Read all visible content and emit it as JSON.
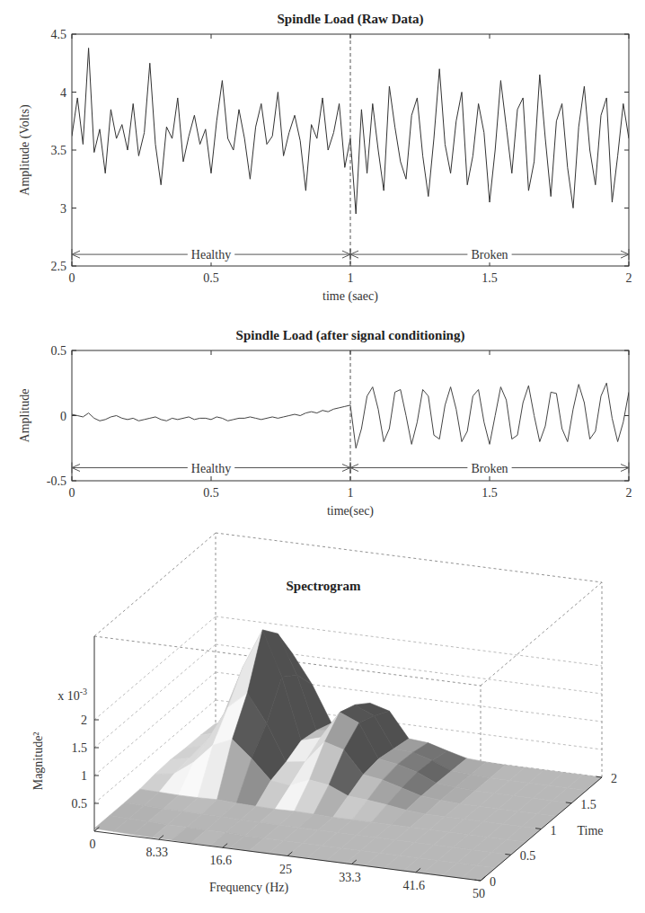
{
  "chart_data": [
    {
      "type": "line",
      "title": "Spindle Load (Raw Data)",
      "xlabel": "time (saec)",
      "ylabel": "Amplitude (Volts)",
      "xlim": [
        0,
        2
      ],
      "ylim": [
        2.5,
        4.5
      ],
      "xticks": [
        0,
        0.5,
        1,
        1.5,
        2
      ],
      "yticks": [
        2.5,
        3,
        3.5,
        4,
        4.5
      ],
      "grid": false,
      "x": [
        0,
        0.02,
        0.04,
        0.06,
        0.08,
        0.1,
        0.12,
        0.14,
        0.16,
        0.18,
        0.2,
        0.22,
        0.24,
        0.26,
        0.28,
        0.3,
        0.32,
        0.34,
        0.36,
        0.38,
        0.4,
        0.42,
        0.44,
        0.46,
        0.48,
        0.5,
        0.52,
        0.54,
        0.56,
        0.58,
        0.6,
        0.62,
        0.64,
        0.66,
        0.68,
        0.7,
        0.72,
        0.74,
        0.76,
        0.78,
        0.8,
        0.82,
        0.84,
        0.86,
        0.88,
        0.9,
        0.92,
        0.94,
        0.96,
        0.98,
        1.0,
        1.02,
        1.04,
        1.06,
        1.08,
        1.1,
        1.12,
        1.14,
        1.16,
        1.18,
        1.2,
        1.22,
        1.24,
        1.26,
        1.28,
        1.3,
        1.32,
        1.34,
        1.36,
        1.38,
        1.4,
        1.42,
        1.44,
        1.46,
        1.48,
        1.5,
        1.52,
        1.54,
        1.56,
        1.58,
        1.6,
        1.62,
        1.64,
        1.66,
        1.68,
        1.7,
        1.72,
        1.74,
        1.76,
        1.78,
        1.8,
        1.82,
        1.84,
        1.86,
        1.88,
        1.9,
        1.92,
        1.94,
        1.96,
        1.98,
        2
      ],
      "series": [
        {
          "color": "#333333",
          "values": [
            3.62,
            3.95,
            3.55,
            4.38,
            3.48,
            3.68,
            3.3,
            3.85,
            3.6,
            3.72,
            3.5,
            3.9,
            3.45,
            3.65,
            4.25,
            3.55,
            3.2,
            3.7,
            3.6,
            3.95,
            3.4,
            3.62,
            3.8,
            3.55,
            3.68,
            3.3,
            3.75,
            4.1,
            3.6,
            3.5,
            3.85,
            3.6,
            3.25,
            3.7,
            3.9,
            3.55,
            3.62,
            4.0,
            3.45,
            3.65,
            3.8,
            3.58,
            3.15,
            3.72,
            3.6,
            3.95,
            3.5,
            3.65,
            3.9,
            3.35,
            3.6,
            2.95,
            3.85,
            3.3,
            3.9,
            3.5,
            3.15,
            4.05,
            3.7,
            3.4,
            3.25,
            3.8,
            3.95,
            3.45,
            3.1,
            3.6,
            4.2,
            3.55,
            3.3,
            3.75,
            4.0,
            3.2,
            3.45,
            3.9,
            3.65,
            3.05,
            3.5,
            4.1,
            3.7,
            3.3,
            3.85,
            3.95,
            3.15,
            3.4,
            4.15,
            3.6,
            3.1,
            3.75,
            3.9,
            3.35,
            3.0,
            3.7,
            4.05,
            3.5,
            3.2,
            3.8,
            3.95,
            3.05,
            3.45,
            3.9,
            3.6
          ]
        }
      ],
      "vlines": [
        1
      ],
      "annotations": [
        {
          "text": "Healthy",
          "x": [
            0,
            1
          ],
          "y": 2.6
        },
        {
          "text": "Broken",
          "x": [
            1,
            2
          ],
          "y": 2.6
        }
      ]
    },
    {
      "type": "line",
      "title": "Spindle Load (after signal conditioning)",
      "xlabel": "time(sec)",
      "ylabel": "Amplitude",
      "xlim": [
        0,
        2
      ],
      "ylim": [
        -0.5,
        0.5
      ],
      "xticks": [
        0,
        0.5,
        1,
        1.5,
        2
      ],
      "yticks": [
        -0.5,
        0,
        0.5
      ],
      "grid": false,
      "x": [
        0,
        0.02,
        0.04,
        0.06,
        0.08,
        0.1,
        0.12,
        0.14,
        0.16,
        0.18,
        0.2,
        0.22,
        0.24,
        0.26,
        0.28,
        0.3,
        0.32,
        0.34,
        0.36,
        0.38,
        0.4,
        0.42,
        0.44,
        0.46,
        0.48,
        0.5,
        0.52,
        0.54,
        0.56,
        0.58,
        0.6,
        0.62,
        0.64,
        0.66,
        0.68,
        0.7,
        0.72,
        0.74,
        0.76,
        0.78,
        0.8,
        0.82,
        0.84,
        0.86,
        0.88,
        0.9,
        0.92,
        0.94,
        0.96,
        0.98,
        1.0,
        1.02,
        1.04,
        1.06,
        1.08,
        1.1,
        1.12,
        1.14,
        1.16,
        1.18,
        1.2,
        1.22,
        1.24,
        1.26,
        1.28,
        1.3,
        1.32,
        1.34,
        1.36,
        1.38,
        1.4,
        1.42,
        1.44,
        1.46,
        1.48,
        1.5,
        1.52,
        1.54,
        1.56,
        1.58,
        1.6,
        1.62,
        1.64,
        1.66,
        1.68,
        1.7,
        1.72,
        1.74,
        1.76,
        1.78,
        1.8,
        1.82,
        1.84,
        1.86,
        1.88,
        1.9,
        1.92,
        1.94,
        1.96,
        1.98,
        2
      ],
      "series": [
        {
          "color": "#444444",
          "values": [
            0.01,
            0.0,
            -0.01,
            0.02,
            -0.02,
            -0.04,
            -0.03,
            -0.01,
            0.0,
            -0.02,
            -0.03,
            -0.02,
            -0.04,
            -0.03,
            -0.02,
            -0.01,
            -0.03,
            -0.04,
            -0.02,
            -0.03,
            -0.02,
            -0.01,
            -0.03,
            -0.02,
            -0.02,
            -0.03,
            -0.01,
            -0.02,
            -0.04,
            -0.03,
            -0.02,
            -0.02,
            -0.01,
            -0.02,
            -0.03,
            -0.02,
            -0.01,
            -0.02,
            -0.01,
            0.0,
            0.01,
            0.0,
            0.02,
            0.03,
            0.02,
            0.04,
            0.03,
            0.05,
            0.06,
            0.07,
            0.08,
            -0.25,
            -0.1,
            0.15,
            0.22,
            0.05,
            -0.2,
            -0.1,
            0.18,
            0.2,
            0.0,
            -0.22,
            -0.05,
            0.2,
            0.15,
            -0.15,
            -0.18,
            0.08,
            0.22,
            0.05,
            -0.2,
            -0.12,
            0.15,
            0.2,
            -0.05,
            -0.22,
            0.0,
            0.22,
            0.12,
            -0.18,
            -0.15,
            0.1,
            0.23,
            0.0,
            -0.2,
            -0.08,
            0.18,
            0.17,
            -0.1,
            -0.2,
            0.05,
            0.24,
            0.1,
            -0.18,
            -0.12,
            0.15,
            0.25,
            -0.02,
            -0.2,
            -0.05,
            0.18
          ]
        }
      ],
      "vlines": [
        1
      ],
      "annotations": [
        {
          "text": "Healthy",
          "x": [
            0,
            1
          ],
          "y": -0.4
        },
        {
          "text": "Broken",
          "x": [
            1,
            2
          ],
          "y": -0.4
        }
      ]
    },
    {
      "type": "surface",
      "title": "Spectrogram",
      "xlabel": "Frequency (Hz)",
      "ylabel": "Time",
      "zlabel": "Magnitude²",
      "z_multiplier": {
        "base": "x 10",
        "exponent": "-3"
      },
      "xlim": [
        0,
        50
      ],
      "ylim": [
        0,
        2
      ],
      "zlim": [
        0,
        3.5
      ],
      "xticks": [
        0,
        8.33,
        16.6,
        25,
        33.3,
        41.6,
        50
      ],
      "yticks": [
        0,
        0.5,
        1,
        1.5,
        2
      ],
      "zticks": [
        0.5,
        1,
        1.5,
        2
      ],
      "grid": true,
      "x": [
        0,
        2.5,
        5,
        7.5,
        10,
        12.5,
        15,
        17.5,
        20,
        22.5,
        25,
        27.5,
        30,
        32.5,
        35,
        37.5,
        40,
        42.5,
        45,
        47.5,
        50
      ],
      "y": [
        0,
        0.25,
        0.5,
        0.75,
        1,
        1.25,
        1.5,
        1.75,
        2
      ],
      "z": [
        [
          0.05,
          0.04,
          0.03,
          0.02,
          0.02,
          0.01,
          0.01,
          0.01,
          0,
          0,
          0,
          0,
          0,
          0,
          0,
          0,
          0,
          0,
          0,
          0,
          0
        ],
        [
          0.05,
          0.04,
          0.03,
          0.02,
          0.02,
          0.01,
          0.01,
          0,
          0,
          0,
          0,
          0,
          0,
          0,
          0,
          0,
          0,
          0,
          0,
          0,
          0
        ],
        [
          0.05,
          0.04,
          0.03,
          0.03,
          0.02,
          0.02,
          0.01,
          0.01,
          0,
          0,
          0,
          0,
          0,
          0,
          0,
          0,
          0,
          0,
          0,
          0,
          0
        ],
        [
          0.06,
          0.05,
          0.04,
          0.04,
          0.05,
          0.03,
          0.02,
          0.01,
          0.02,
          0.01,
          0,
          0,
          0,
          0,
          0,
          0,
          0,
          0,
          0,
          0,
          0
        ],
        [
          0.1,
          0.15,
          0.4,
          0.75,
          0.9,
          0.6,
          0.25,
          0.2,
          0.35,
          0.3,
          0.15,
          0.12,
          0.08,
          0.03,
          0,
          0,
          0,
          0,
          0,
          0,
          0
        ],
        [
          0.12,
          0.2,
          0.6,
          1.2,
          1.5,
          1.0,
          0.35,
          0.4,
          0.8,
          0.7,
          0.3,
          0.25,
          0.15,
          0.05,
          0.02,
          0,
          0,
          0,
          0,
          0,
          0
        ],
        [
          0.1,
          0.2,
          0.8,
          1.7,
          2.4,
          1.6,
          0.5,
          0.6,
          1.1,
          0.95,
          0.35,
          0.3,
          0.2,
          0.05,
          0.02,
          0,
          0,
          0,
          0,
          0,
          0
        ],
        [
          0.1,
          0.2,
          0.7,
          1.5,
          2.1,
          1.4,
          0.45,
          0.5,
          1.0,
          0.85,
          0.3,
          0.28,
          0.18,
          0.04,
          0.02,
          0,
          0,
          0,
          0,
          0,
          0
        ],
        [
          0.08,
          0.15,
          0.5,
          1.1,
          1.5,
          1.0,
          0.35,
          0.4,
          0.8,
          0.7,
          0.25,
          0.22,
          0.12,
          0.03,
          0.01,
          0,
          0,
          0,
          0,
          0,
          0
        ]
      ]
    }
  ]
}
